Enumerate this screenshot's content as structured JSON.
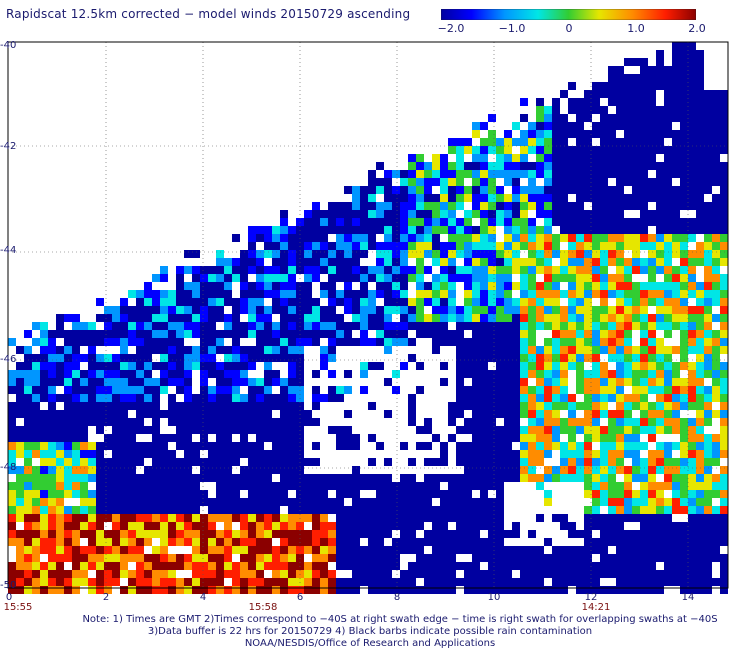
{
  "title": "Rapidscat 12.5km corrected − model winds 20150729 ascending",
  "colorbar": {
    "labels": [
      "−2.0",
      "−1.0",
      "0",
      "1.0",
      "2.0"
    ],
    "values": [
      -2.0,
      -1.0,
      0,
      1.0,
      2.0
    ],
    "range": [
      -2.0,
      2.0
    ],
    "colors": [
      "#0000a0",
      "#0000ff",
      "#0096ff",
      "#00e6e6",
      "#32cd32",
      "#e6e600",
      "#ff8c00",
      "#ff1e00",
      "#8b0000"
    ]
  },
  "axes": {
    "y_ticks": [
      "-40",
      "-42",
      "-44",
      "-46",
      "-48",
      "-50"
    ],
    "x_ticks": [
      "0",
      "2",
      "4",
      "6",
      "8",
      "10",
      "12",
      "14"
    ],
    "time_labels": [
      {
        "text": "15:55",
        "x_value": 0
      },
      {
        "text": "15:58",
        "x_value": 5.2
      },
      {
        "text": "14:21",
        "x_value": 12.1
      }
    ],
    "grid": true
  },
  "notes": [
    "Note: 1) Times are GMT 2)Times correspond to −40S at right swath edge − time is right swath for overlapping swaths at −40S",
    "3)Data buffer is 22 hrs for 20150729 4) Black barbs indicate possible rain contamination",
    "NOAA/NESDIS/Office of Research and Applications"
  ]
}
